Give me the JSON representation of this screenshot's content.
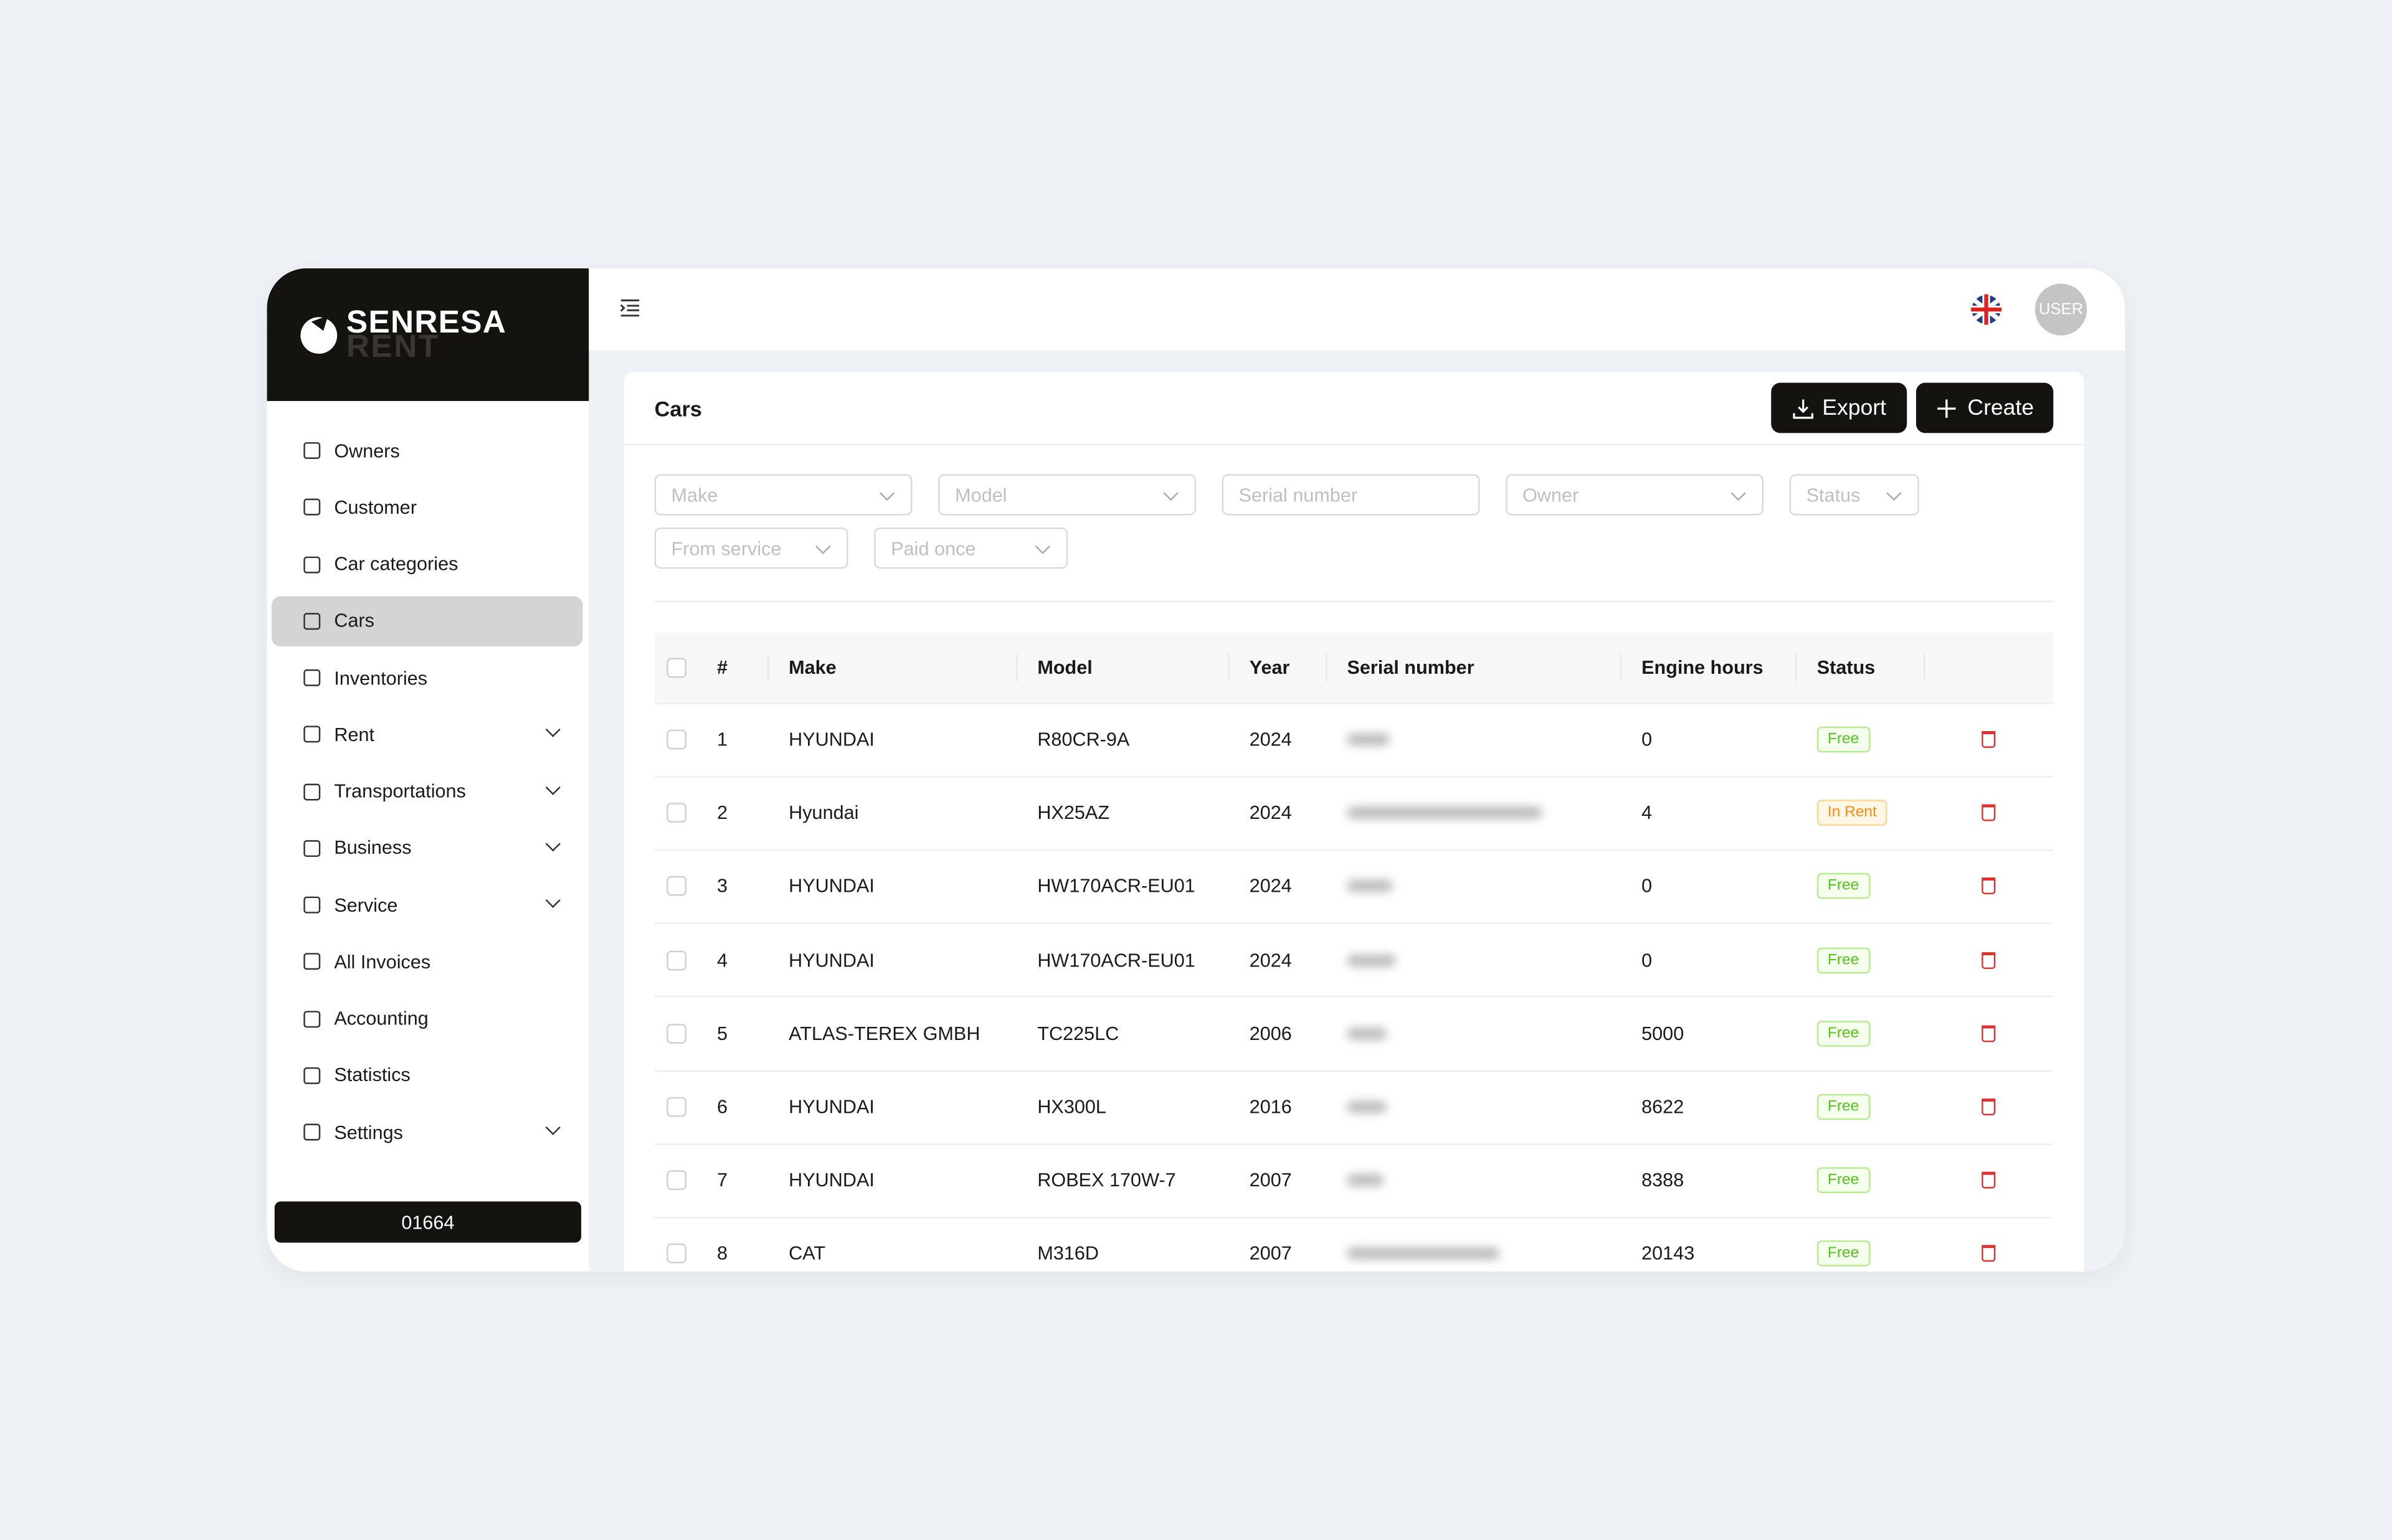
{
  "logo": {
    "primary": "SENRESA",
    "secondary": "RENT"
  },
  "menu": [
    {
      "label": "Owners",
      "expandable": false
    },
    {
      "label": "Customer",
      "expandable": false
    },
    {
      "label": "Car categories",
      "expandable": false
    },
    {
      "label": "Cars",
      "expandable": false,
      "active": true
    },
    {
      "label": "Inventories",
      "expandable": false
    },
    {
      "label": "Rent",
      "expandable": true
    },
    {
      "label": "Transportations",
      "expandable": true
    },
    {
      "label": "Business",
      "expandable": true
    },
    {
      "label": "Service",
      "expandable": true
    },
    {
      "label": "All Invoices",
      "expandable": false
    },
    {
      "label": "Accounting",
      "expandable": false
    },
    {
      "label": "Statistics",
      "expandable": false
    },
    {
      "label": "Settings",
      "expandable": true
    }
  ],
  "footer_code": "01664",
  "header": {
    "user": "USER"
  },
  "page": {
    "title": "Cars",
    "actions": [
      "Export",
      "Create"
    ]
  },
  "filters": [
    {
      "placeholder": "Make",
      "dropdown": true
    },
    {
      "placeholder": "Model",
      "dropdown": true
    },
    {
      "placeholder": "Serial number",
      "dropdown": false
    },
    {
      "placeholder": "Owner",
      "dropdown": true
    },
    {
      "placeholder": "Status",
      "dropdown": true
    },
    {
      "placeholder": "From service",
      "dropdown": true
    },
    {
      "placeholder": "Paid once",
      "dropdown": true
    }
  ],
  "table": {
    "columns": [
      "#",
      "Make",
      "Model",
      "Year",
      "Serial number",
      "Engine hours",
      "Status"
    ],
    "rows": [
      {
        "no": 1,
        "make": "HYUNDAI",
        "model": "R80CR-9A",
        "year": 2024,
        "engine_hours": 0,
        "status": "Free"
      },
      {
        "no": 2,
        "make": "Hyundai",
        "model": "HX25AZ",
        "year": 2024,
        "engine_hours": 4,
        "status": "In Rent"
      },
      {
        "no": 3,
        "make": "HYUNDAI",
        "model": "HW170ACR-EU01",
        "year": 2024,
        "engine_hours": 0,
        "status": "Free"
      },
      {
        "no": 4,
        "make": "HYUNDAI",
        "model": "HW170ACR-EU01",
        "year": 2024,
        "engine_hours": 0,
        "status": "Free"
      },
      {
        "no": 5,
        "make": "ATLAS-TEREX GMBH",
        "model": "TC225LC",
        "year": 2006,
        "engine_hours": 5000,
        "status": "Free"
      },
      {
        "no": 6,
        "make": "HYUNDAI",
        "model": "HX300L",
        "year": 2016,
        "engine_hours": 8622,
        "status": "Free"
      },
      {
        "no": 7,
        "make": "HYUNDAI",
        "model": "ROBEX 170W-7",
        "year": 2007,
        "engine_hours": 8388,
        "status": "Free"
      },
      {
        "no": 8,
        "make": "CAT",
        "model": "M316D",
        "year": 2007,
        "engine_hours": 20143,
        "status": "Free"
      }
    ]
  }
}
